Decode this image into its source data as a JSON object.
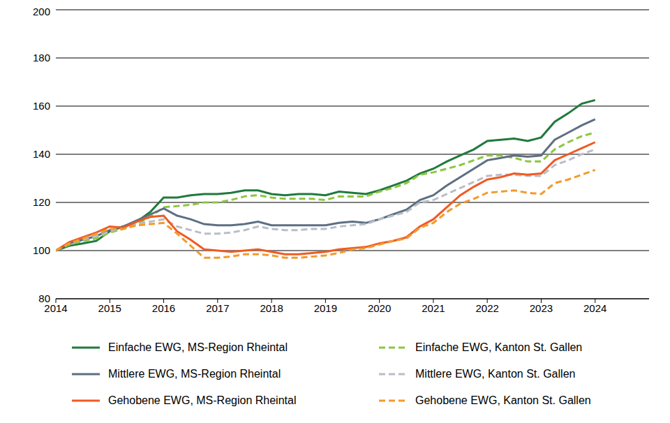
{
  "chart_data": {
    "type": "line",
    "x": [
      2014,
      2014.25,
      2014.5,
      2014.75,
      2015,
      2015.25,
      2015.5,
      2015.75,
      2016,
      2016.25,
      2016.5,
      2016.75,
      2017,
      2017.25,
      2017.5,
      2017.75,
      2018,
      2018.25,
      2018.5,
      2018.75,
      2019,
      2019.25,
      2019.5,
      2019.75,
      2020,
      2020.25,
      2020.5,
      2020.75,
      2021,
      2021.25,
      2021.5,
      2021.75,
      2022,
      2022.25,
      2022.5,
      2022.75,
      2023,
      2023.25,
      2023.5,
      2023.75,
      2024
    ],
    "xlim": [
      2014,
      2025
    ],
    "xticks": [
      2014,
      2015,
      2016,
      2017,
      2018,
      2019,
      2020,
      2021,
      2022,
      2023,
      2024
    ],
    "ylim": [
      80,
      200
    ],
    "yticks": [
      80,
      100,
      120,
      140,
      160,
      180,
      200
    ],
    "grid": true,
    "legend": "bottom",
    "series": [
      {
        "name": "Einfache EWG, MS-Region Rheintal",
        "color": "#1f7a3c",
        "line_style": "solid",
        "values": [
          100,
          102,
          103,
          104,
          108,
          110,
          112,
          116,
          122,
          122,
          123,
          123.5,
          123.5,
          124,
          125,
          125,
          123.5,
          123,
          123.5,
          123.5,
          123,
          124.5,
          124,
          123.5,
          125,
          127,
          129,
          132,
          134,
          137,
          139.5,
          142,
          145.5,
          146,
          146.5,
          145.5,
          147,
          153.5,
          157,
          161,
          162.5
        ]
      },
      {
        "name": "Einfache EWG, Kanton St. Gallen",
        "color": "#8dc63f",
        "line_style": "dashed",
        "values": [
          100,
          102.5,
          104,
          105,
          107.5,
          109,
          111,
          114,
          118,
          118.5,
          119,
          120,
          120,
          121,
          122.5,
          123,
          122,
          121.5,
          121.5,
          121.5,
          121,
          122.5,
          122.5,
          122.5,
          124.5,
          126,
          128,
          131.5,
          132.5,
          134,
          135.5,
          137.5,
          139.5,
          139.5,
          138.5,
          137,
          137,
          142,
          145,
          147.5,
          149
        ]
      },
      {
        "name": "Mittlere EWG, MS-Region Rheintal",
        "color": "#5d6f82",
        "line_style": "solid",
        "values": [
          100,
          103,
          104.5,
          106,
          108.5,
          110,
          112.5,
          115,
          117.5,
          114.5,
          113,
          111,
          110.5,
          110.5,
          111,
          112,
          110.5,
          110.5,
          110.5,
          110.5,
          110.5,
          111.5,
          112,
          111.5,
          113,
          115,
          117,
          121,
          123,
          127,
          130.5,
          134,
          137.5,
          138.5,
          139.5,
          139,
          139.5,
          146,
          149,
          152,
          154.5
        ]
      },
      {
        "name": "Mittlere EWG, Kanton St. Gallen",
        "color": "#b8bec8",
        "line_style": "dashed",
        "values": [
          100,
          103,
          104.5,
          106,
          108,
          109.5,
          111,
          112,
          113,
          110,
          108.5,
          107,
          107,
          107.5,
          108.5,
          110,
          109,
          108.5,
          108.5,
          109,
          109,
          110,
          110.5,
          111,
          113,
          114.5,
          116,
          120,
          121,
          123.5,
          126,
          128.5,
          131,
          131.5,
          131.5,
          131,
          131,
          135.5,
          137.5,
          140,
          142
        ]
      },
      {
        "name": "Gehobene EWG, MS-Region Rheintal",
        "color": "#f05a22",
        "line_style": "solid",
        "values": [
          100,
          103.5,
          105.5,
          107.5,
          110,
          109.5,
          112,
          114,
          114.5,
          108,
          104.5,
          100.5,
          100,
          99.5,
          100,
          100.5,
          99.5,
          98.5,
          98.5,
          99,
          99.5,
          100.5,
          101,
          101.5,
          103,
          104,
          105.5,
          110,
          113,
          118,
          123,
          126.5,
          129.5,
          130.5,
          132,
          131.5,
          132,
          137.5,
          140,
          142.5,
          145
        ]
      },
      {
        "name": "Gehobene EWG, Kanton St. Gallen",
        "color": "#f39a2c",
        "line_style": "dashed",
        "values": [
          100,
          103,
          105,
          107,
          109,
          109,
          110.5,
          111,
          111.5,
          107,
          102,
          97,
          97,
          97.5,
          98.5,
          98.5,
          98,
          97,
          97,
          97.5,
          98,
          99,
          100.5,
          101,
          102.5,
          104,
          105,
          109.5,
          111.5,
          116,
          119.5,
          121.5,
          124,
          124.5,
          125,
          124,
          123.5,
          128,
          129.5,
          131.5,
          133.5
        ]
      }
    ]
  }
}
